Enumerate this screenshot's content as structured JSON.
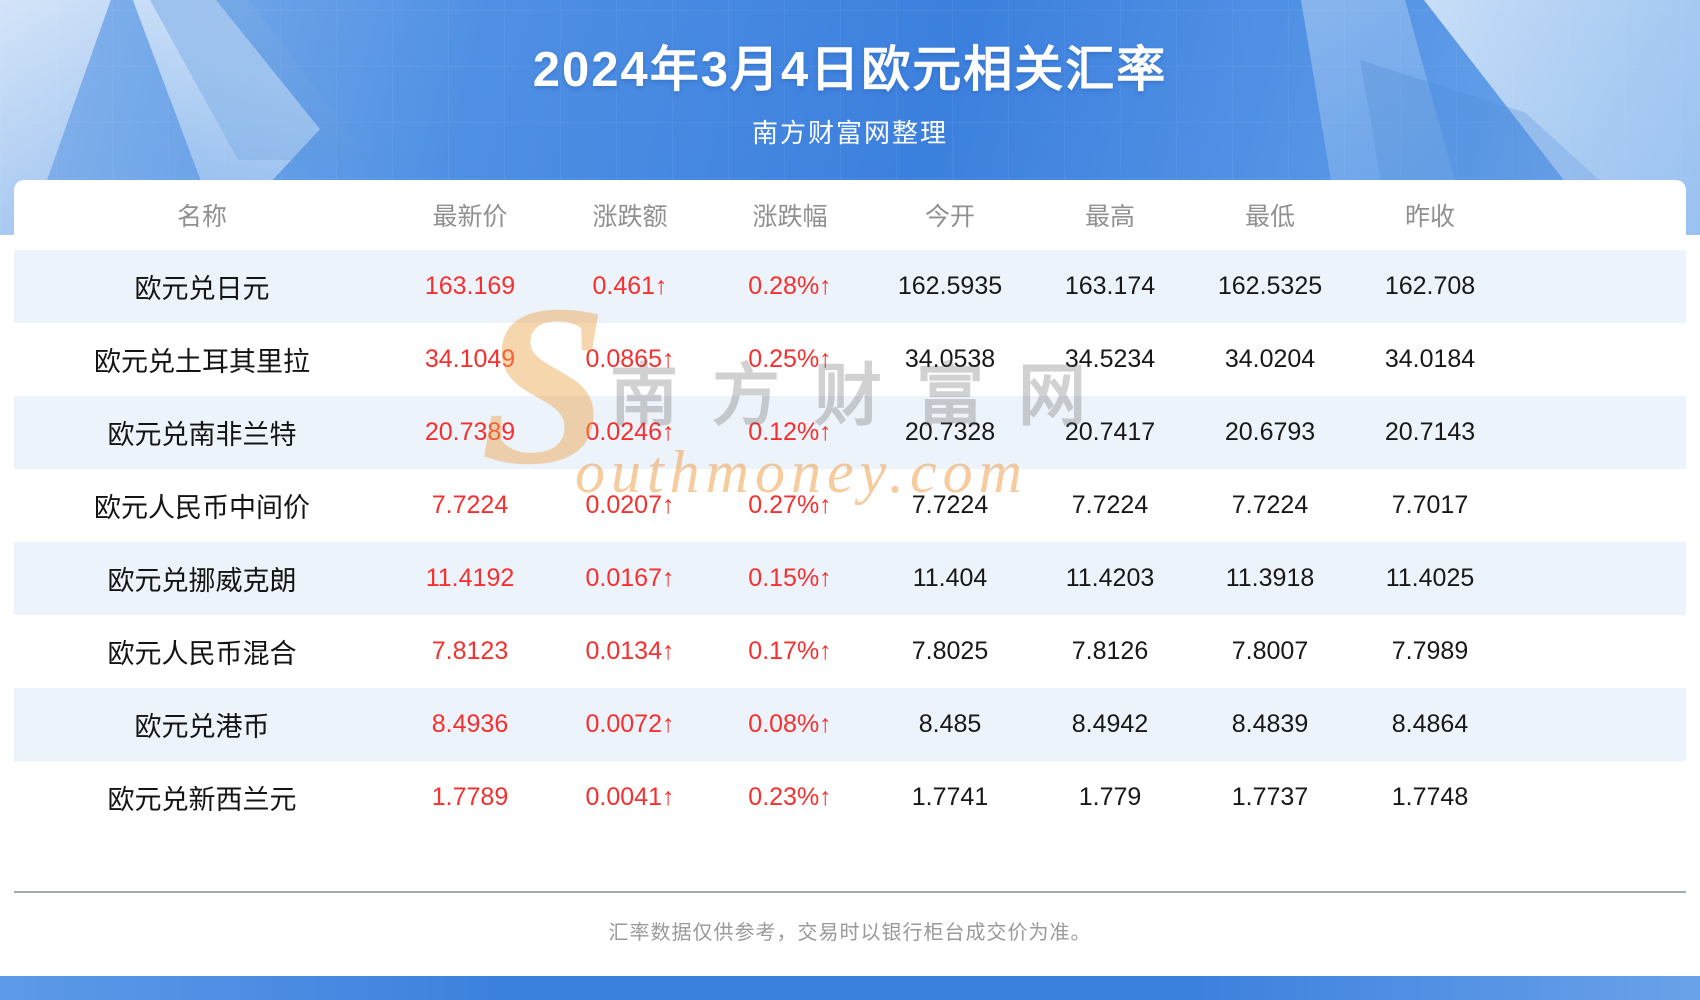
{
  "banner": {
    "title": "2024年3月4日欧元相关汇率",
    "subtitle": "南方财富网整理"
  },
  "table": {
    "columns": [
      {
        "key": "name",
        "label": "名称",
        "red": false
      },
      {
        "key": "latest",
        "label": "最新价",
        "red": true
      },
      {
        "key": "change",
        "label": "涨跌额",
        "red": true
      },
      {
        "key": "change_pct",
        "label": "涨跌幅",
        "red": true
      },
      {
        "key": "open",
        "label": "今开",
        "red": false
      },
      {
        "key": "high",
        "label": "最高",
        "red": false
      },
      {
        "key": "low",
        "label": "最低",
        "red": false
      },
      {
        "key": "prev_close",
        "label": "昨收",
        "red": false
      }
    ],
    "rows": [
      {
        "name": "欧元兑日元",
        "latest": "163.169",
        "change": "0.461↑",
        "change_pct": "0.28%↑",
        "open": "162.5935",
        "high": "163.174",
        "low": "162.5325",
        "prev_close": "162.708"
      },
      {
        "name": "欧元兑土耳其里拉",
        "latest": "34.1049",
        "change": "0.0865↑",
        "change_pct": "0.25%↑",
        "open": "34.0538",
        "high": "34.5234",
        "low": "34.0204",
        "prev_close": "34.0184"
      },
      {
        "name": "欧元兑南非兰特",
        "latest": "20.7389",
        "change": "0.0246↑",
        "change_pct": "0.12%↑",
        "open": "20.7328",
        "high": "20.7417",
        "low": "20.6793",
        "prev_close": "20.7143"
      },
      {
        "name": "欧元人民币中间价",
        "latest": "7.7224",
        "change": "0.0207↑",
        "change_pct": "0.27%↑",
        "open": "7.7224",
        "high": "7.7224",
        "low": "7.7224",
        "prev_close": "7.7017"
      },
      {
        "name": "欧元兑挪威克朗",
        "latest": "11.4192",
        "change": "0.0167↑",
        "change_pct": "0.15%↑",
        "open": "11.404",
        "high": "11.4203",
        "low": "11.3918",
        "prev_close": "11.4025"
      },
      {
        "name": "欧元人民币混合",
        "latest": "7.8123",
        "change": "0.0134↑",
        "change_pct": "0.17%↑",
        "open": "7.8025",
        "high": "7.8126",
        "low": "7.8007",
        "prev_close": "7.7989"
      },
      {
        "name": "欧元兑港币",
        "latest": "8.4936",
        "change": "0.0072↑",
        "change_pct": "0.08%↑",
        "open": "8.485",
        "high": "8.4942",
        "low": "8.4839",
        "prev_close": "8.4864"
      },
      {
        "name": "欧元兑新西兰元",
        "latest": "1.7789",
        "change": "0.0041↑",
        "change_pct": "0.23%↑",
        "open": "1.7741",
        "high": "1.779",
        "low": "1.7737",
        "prev_close": "1.7748"
      }
    ]
  },
  "watermark": {
    "s": "S",
    "cn": "南方财富网",
    "en": "outhmoney.com"
  },
  "footer": {
    "disclaimer": "汇率数据仅供参考，交易时以银行柜台成交价为准。"
  },
  "colors": {
    "accent_red": "#f72f2f",
    "stripe_blue": "#edf3fa",
    "banner_blue": "#3c80de"
  }
}
